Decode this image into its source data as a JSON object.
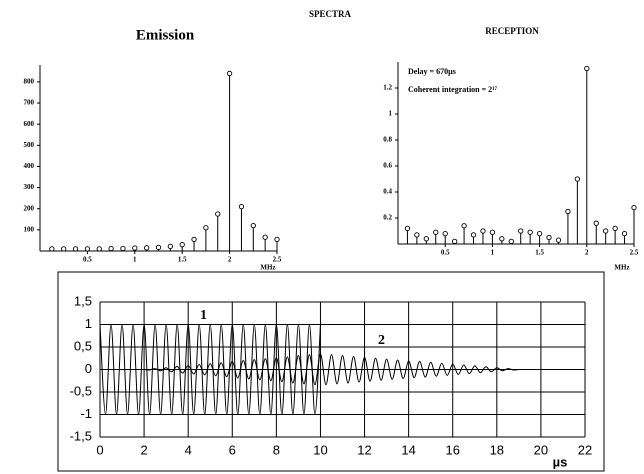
{
  "title": "SPECTRA",
  "chart_data": [
    {
      "type": "stem",
      "title": "Emission",
      "xlabel": "MHz",
      "color": "#000000",
      "x": [
        0.125,
        0.25,
        0.375,
        0.5,
        0.625,
        0.75,
        0.875,
        1,
        1.125,
        1.25,
        1.375,
        1.5,
        1.625,
        1.75,
        1.875,
        2,
        2.125,
        2.25,
        2.375,
        2.5
      ],
      "values": [
        10,
        10,
        10,
        10,
        10,
        12,
        12,
        14,
        15,
        17,
        22,
        30,
        55,
        110,
        175,
        840,
        210,
        120,
        65,
        55
      ],
      "xlim": [
        0,
        2.5
      ],
      "xticks": [
        0.5,
        1,
        1.5,
        2,
        2.5
      ],
      "ylim": [
        0,
        880
      ],
      "yticks": [
        100,
        200,
        300,
        400,
        500,
        600,
        700,
        800
      ],
      "grid": false
    },
    {
      "type": "stem",
      "title": "RECEPTION",
      "xlabel": "MHz",
      "color": "#000000",
      "annotations": [
        "Delay = 670µs",
        "Coherent integration = 2¹⁷"
      ],
      "x": [
        0.1,
        0.2,
        0.3,
        0.4,
        0.5,
        0.6,
        0.7,
        0.8,
        0.9,
        1,
        1.1,
        1.2,
        1.3,
        1.4,
        1.5,
        1.6,
        1.7,
        1.8,
        1.9,
        2,
        2.1,
        2.2,
        2.3,
        2.4,
        2.5
      ],
      "values": [
        0.12,
        0.07,
        0.04,
        0.09,
        0.08,
        0.02,
        0.14,
        0.07,
        0.1,
        0.09,
        0.04,
        0.02,
        0.1,
        0.09,
        0.08,
        0.05,
        0.03,
        0.25,
        0.5,
        1.35,
        0.16,
        0.1,
        0.12,
        0.08,
        0.28
      ],
      "xlim": [
        0,
        2.5
      ],
      "xticks": [
        0.5,
        1,
        1.5,
        2,
        2.5
      ],
      "ylim": [
        0,
        1.4
      ],
      "yticks": [
        0.2,
        0.4,
        0.6,
        0.8,
        1,
        1.2
      ],
      "grid": false
    },
    {
      "type": "line",
      "xlabel": "µs",
      "x": [
        0,
        0.25,
        0.5,
        0.75,
        1,
        1.25,
        1.5,
        1.75,
        2,
        2.25,
        2.5,
        2.75,
        3,
        3.25,
        3.5,
        3.75,
        4,
        4.25,
        4.5,
        4.75,
        5,
        5.25,
        5.5,
        5.75,
        6,
        6.25,
        6.5,
        6.75,
        7,
        7.25,
        7.5,
        7.75,
        8,
        8.25,
        8.5,
        8.75,
        9,
        9.25,
        9.5,
        9.75,
        10,
        10.25,
        10.5,
        10.75,
        11,
        11.25,
        11.5,
        11.75,
        12,
        12.25,
        12.5,
        12.75,
        13,
        13.25,
        13.5,
        13.75,
        14,
        14.25,
        14.5,
        14.75,
        15,
        15.25,
        15.5,
        15.75,
        16,
        16.25,
        16.5,
        16.75,
        17,
        17.25,
        17.5,
        17.75,
        18,
        18.25,
        18.5,
        18.75,
        19
      ],
      "series": [
        {
          "name": "1",
          "color": "#000000",
          "values": [
            1,
            -1,
            1,
            -1,
            1,
            -1,
            1,
            -1,
            1,
            -1,
            1,
            -1,
            1,
            -1,
            1,
            -1,
            1,
            -1,
            1,
            -1,
            1,
            -1,
            1,
            -1,
            1,
            -1,
            1,
            -1,
            1,
            -1,
            1,
            -1,
            1,
            -1,
            1,
            -1,
            1,
            -1,
            1,
            -1,
            1,
            null,
            null,
            null,
            null,
            null,
            null,
            null,
            null,
            null,
            null,
            null,
            null,
            null,
            null,
            null,
            null,
            null,
            null,
            null,
            null,
            null,
            null,
            null,
            null,
            null,
            null,
            null,
            null,
            null,
            null,
            null,
            null,
            null,
            null,
            null,
            null
          ]
        },
        {
          "name": "2",
          "color": "#000000",
          "values": [
            null,
            null,
            null,
            null,
            null,
            null,
            null,
            null,
            0,
            -0.01,
            0.02,
            -0.03,
            0.04,
            -0.05,
            0.07,
            -0.08,
            0.09,
            -0.1,
            0.11,
            -0.12,
            0.13,
            -0.14,
            0.15,
            -0.16,
            0.18,
            -0.19,
            0.2,
            -0.21,
            0.22,
            -0.23,
            0.24,
            -0.25,
            0.26,
            -0.27,
            0.28,
            -0.3,
            0.31,
            -0.32,
            0.33,
            -0.34,
            0.35,
            -0.34,
            0.33,
            -0.32,
            0.31,
            -0.3,
            0.29,
            -0.28,
            0.27,
            -0.26,
            0.25,
            -0.24,
            0.23,
            -0.22,
            0.21,
            -0.2,
            0.19,
            -0.18,
            0.18,
            -0.17,
            0.16,
            -0.15,
            0.14,
            -0.13,
            0.12,
            -0.11,
            0.1,
            -0.09,
            0.08,
            -0.07,
            0.06,
            -0.05,
            0.04,
            -0.03,
            0.02,
            -0.01,
            0
          ]
        }
      ],
      "xlim": [
        0,
        22
      ],
      "xticks": [
        0,
        2,
        4,
        6,
        8,
        10,
        12,
        14,
        16,
        18,
        20,
        22
      ],
      "ylim": [
        -1.5,
        1.5
      ],
      "yticks": [
        {
          "value": -1.5,
          "label": "-1,5"
        },
        -1,
        {
          "value": -0.5,
          "label": "-0,5"
        },
        0,
        {
          "value": 0.5,
          "label": "0,5"
        },
        1,
        {
          "value": 1.5,
          "label": "1,5"
        }
      ],
      "grid": true
    }
  ]
}
